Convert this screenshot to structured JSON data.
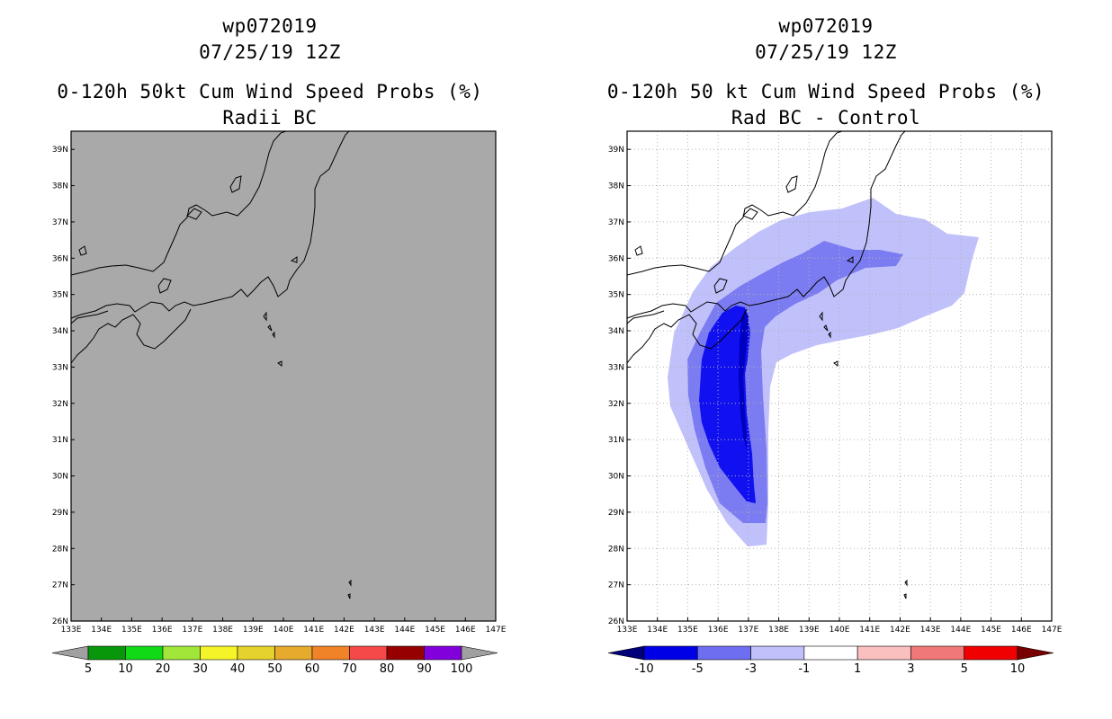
{
  "panels": [
    {
      "id": "left",
      "storm_id": "wp072019",
      "datetime": "07/25/19 12Z",
      "product": "0-120h 50kt Cum Wind Speed Probs (%)",
      "subtitle": "Radii BC",
      "background": "#a9a9a9",
      "grid": false,
      "colorbar": {
        "labels": [
          "5",
          "10",
          "20",
          "30",
          "40",
          "50",
          "60",
          "70",
          "80",
          "90",
          "100"
        ],
        "colors": [
          "#08960b",
          "#10d916",
          "#a2e639",
          "#f4f428",
          "#e6d22d",
          "#e6aa2d",
          "#f08228",
          "#f54848",
          "#960000",
          "#8200dc"
        ],
        "end_colors": [
          "#a0a0a0",
          "#a0a0a0"
        ]
      }
    },
    {
      "id": "right",
      "storm_id": "wp072019",
      "datetime": "07/25/19 12Z",
      "product": "0-120h 50 kt Cum Wind Speed Probs (%)",
      "subtitle": "Rad BC - Control",
      "background": "#ffffff",
      "grid": true,
      "colorbar": {
        "labels": [
          "-10",
          "-5",
          "-3",
          "-1",
          "1",
          "3",
          "5",
          "10"
        ],
        "colors": [
          "#0000e6",
          "#6e6ef0",
          "#c0c0fa",
          "#ffffff",
          "#fac0c0",
          "#f07878",
          "#f00000"
        ],
        "end_colors": [
          "#000078",
          "#780000"
        ]
      },
      "difference_field": {
        "levels": [
          "-1",
          "-3",
          "-5",
          "-10"
        ],
        "colors": [
          "#c0c0fa",
          "#7b7bf2",
          "#1010f0",
          "#0000c0"
        ]
      }
    }
  ],
  "axes": {
    "lon_ticks": [
      "133E",
      "134E",
      "135E",
      "136E",
      "137E",
      "138E",
      "139E",
      "140E",
      "141E",
      "142E",
      "143E",
      "144E",
      "145E",
      "146E",
      "147E"
    ],
    "lat_ticks": [
      "26N",
      "27N",
      "28N",
      "29N",
      "30N",
      "31N",
      "32N",
      "33N",
      "34N",
      "35N",
      "36N",
      "37N",
      "38N",
      "39N"
    ],
    "lon_range": [
      133,
      147
    ],
    "lat_range": [
      26,
      39.5
    ]
  }
}
